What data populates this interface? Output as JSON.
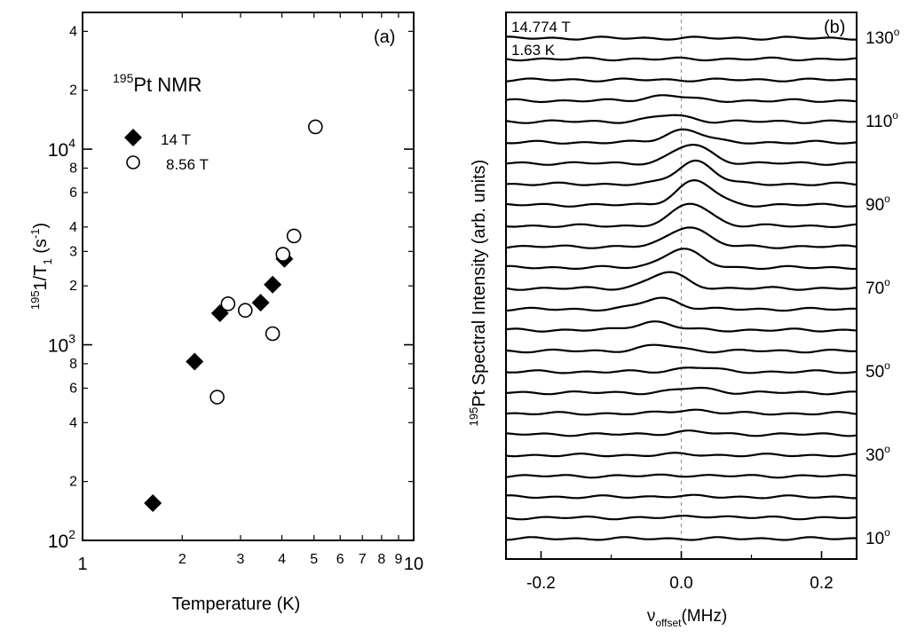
{
  "chart_data": [
    {
      "panel": "(a)",
      "type": "scatter",
      "title": "195Pt NMR",
      "title_sup": "195",
      "title_main": "Pt NMR",
      "xlabel": "Temperature (K)",
      "ylabel_sup": "195",
      "ylabel_main": "1/T",
      "ylabel_sub": "1",
      "ylabel_units": " (s",
      "ylabel_units_sup": "-1",
      "ylabel_close": ")",
      "xscale": "log",
      "yscale": "log",
      "xlim": [
        1,
        10
      ],
      "ylim": [
        100,
        50000
      ],
      "x_major_ticks": [
        {
          "value": 1,
          "label": "1"
        },
        {
          "value": 10,
          "label": "10"
        }
      ],
      "x_minor_ticks": [
        {
          "value": 2,
          "label": "2"
        },
        {
          "value": 3,
          "label": "3"
        },
        {
          "value": 4,
          "label": "4"
        },
        {
          "value": 5,
          "label": "5"
        },
        {
          "value": 6,
          "label": "6"
        },
        {
          "value": 7,
          "label": "7"
        },
        {
          "value": 8,
          "label": "8"
        },
        {
          "value": 9,
          "label": "9"
        }
      ],
      "y_decades": [
        {
          "value": 100,
          "base": "10",
          "exp": "2"
        },
        {
          "value": 1000,
          "base": "10",
          "exp": "3"
        },
        {
          "value": 10000,
          "base": "10",
          "exp": "4"
        }
      ],
      "y_minor_ticks": [
        {
          "value": 200,
          "label": "2"
        },
        {
          "value": 400,
          "label": "4"
        },
        {
          "value": 600,
          "label": "6"
        },
        {
          "value": 800,
          "label": "8"
        },
        {
          "value": 2000,
          "label": "2"
        },
        {
          "value": 3000,
          "label": "3"
        },
        {
          "value": 4000,
          "label": "4"
        },
        {
          "value": 6000,
          "label": "6"
        },
        {
          "value": 8000,
          "label": "8"
        },
        {
          "value": 20000,
          "label": "2"
        },
        {
          "value": 40000,
          "label": "4"
        }
      ],
      "legend_position": "upper-left",
      "series": [
        {
          "name": "14 T",
          "marker": "filled-diamond",
          "points": [
            {
              "x": 1.63,
              "y": 155
            },
            {
              "x": 2.18,
              "y": 820
            },
            {
              "x": 2.6,
              "y": 1450
            },
            {
              "x": 3.45,
              "y": 1640
            },
            {
              "x": 3.75,
              "y": 2030
            },
            {
              "x": 4.07,
              "y": 2750
            }
          ]
        },
        {
          "name": "8.56 T",
          "marker": "open-circle",
          "points": [
            {
              "x": 2.55,
              "y": 540
            },
            {
              "x": 2.75,
              "y": 1620
            },
            {
              "x": 3.1,
              "y": 1500
            },
            {
              "x": 3.75,
              "y": 1140
            },
            {
              "x": 4.03,
              "y": 2900
            },
            {
              "x": 4.35,
              "y": 3600
            },
            {
              "x": 5.05,
              "y": 13000
            }
          ]
        }
      ]
    },
    {
      "panel": "(b)",
      "type": "line",
      "subtitle_field": "14.774 T",
      "subtitle_temp": "1.63 K",
      "ylabel_sup": "195",
      "ylabel_main": "Pt Spectral Intensity (arb. units)",
      "xlabel_main": "ν",
      "xlabel_sub": "offset",
      "xlabel_units": "(MHz)",
      "xlim": [
        -0.25,
        0.25
      ],
      "x_ticks": [
        {
          "value": -0.2,
          "label": "-0.2"
        },
        {
          "value": 0.0,
          "label": "0.0"
        },
        {
          "value": 0.2,
          "label": "0.2"
        }
      ],
      "reference_line_x": 0.0,
      "angle_labels": [
        {
          "angle": 130,
          "label": "130",
          "deg": "o"
        },
        {
          "angle": 110,
          "label": "110",
          "deg": "o"
        },
        {
          "angle": 90,
          "label": "90",
          "deg": "o"
        },
        {
          "angle": 70,
          "label": "70",
          "deg": "o"
        },
        {
          "angle": 50,
          "label": "50",
          "deg": "o"
        },
        {
          "angle": 30,
          "label": "30",
          "deg": "o"
        },
        {
          "angle": 10,
          "label": "10",
          "deg": "o"
        }
      ],
      "angles": [
        130,
        125,
        120,
        115,
        110,
        105,
        100,
        95,
        90,
        85,
        80,
        75,
        70,
        65,
        60,
        55,
        50,
        45,
        40,
        35,
        30,
        25,
        20,
        15,
        10
      ],
      "peak_center_mhz": [
        0.0,
        0.0,
        0.0,
        -0.02,
        -0.015,
        0.005,
        0.015,
        0.02,
        0.02,
        0.015,
        0.01,
        0.0,
        -0.02,
        -0.03,
        -0.04,
        -0.03,
        0.02,
        0.02,
        0.015,
        0.01,
        0.0,
        0.0,
        -0.01,
        0.035,
        0.0
      ],
      "peak_height": [
        0.0,
        0.0,
        0.0,
        0.3,
        0.35,
        0.7,
        1.0,
        1.25,
        1.3,
        1.2,
        1.1,
        1.0,
        0.85,
        0.6,
        0.45,
        0.3,
        0.25,
        0.25,
        0.2,
        0.15,
        0.05,
        0.05,
        0.05,
        0.1,
        0.0
      ]
    }
  ],
  "panel_a_label": "(a)",
  "panel_b_label": "(b)"
}
